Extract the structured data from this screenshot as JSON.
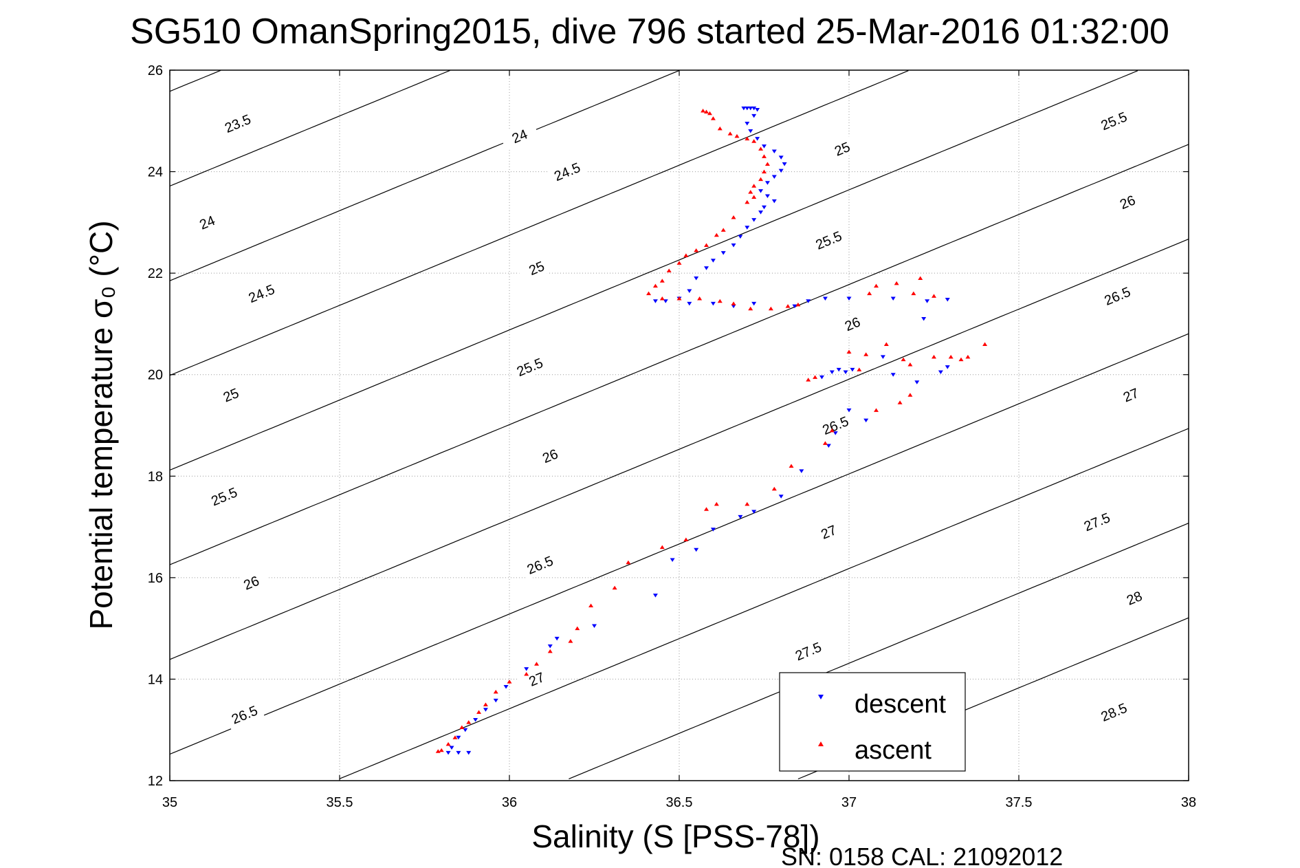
{
  "chart_data": {
    "type": "scatter",
    "title": "SG510 OmanSpring2015, dive 796 started 25-Mar-2016 01:32:00",
    "xlabel": "Salinity (S [PSS-78])",
    "ylabel": "Potential temperature σ₀ (°C)",
    "xlim": [
      35,
      38
    ],
    "ylim": [
      12,
      26
    ],
    "x_ticks": [
      35,
      35.5,
      36,
      36.5,
      37,
      37.5,
      38
    ],
    "x_tick_labels": [
      "35",
      "35.5",
      "36",
      "36.5",
      "37",
      "37.5",
      "38"
    ],
    "y_ticks": [
      12,
      14,
      16,
      18,
      20,
      22,
      24,
      26
    ],
    "y_tick_labels": [
      "12",
      "14",
      "16",
      "18",
      "20",
      "22",
      "24",
      "26"
    ],
    "grid": true,
    "legend_position": "bottom-right",
    "isopycnal_levels": [
      23.5,
      24,
      24.5,
      25,
      25.5,
      26,
      26.5,
      27,
      27.5,
      28,
      28.5
    ],
    "isopycnal_labels": [
      {
        "text": "23.5",
        "x": 35.2,
        "y": 24.95
      },
      {
        "text": "24",
        "x": 36.03,
        "y": 24.7
      },
      {
        "text": "24",
        "x": 35.11,
        "y": 23.0
      },
      {
        "text": "24.5",
        "x": 36.17,
        "y": 24.0
      },
      {
        "text": "24.5",
        "x": 35.27,
        "y": 21.6
      },
      {
        "text": "25",
        "x": 36.98,
        "y": 24.45
      },
      {
        "text": "25",
        "x": 36.08,
        "y": 22.1
      },
      {
        "text": "25",
        "x": 35.18,
        "y": 19.6
      },
      {
        "text": "25.5",
        "x": 37.78,
        "y": 25.0
      },
      {
        "text": "25.5",
        "x": 36.94,
        "y": 22.65
      },
      {
        "text": "25.5",
        "x": 36.06,
        "y": 20.15
      },
      {
        "text": "25.5",
        "x": 35.16,
        "y": 17.6
      },
      {
        "text": "26",
        "x": 37.82,
        "y": 23.4
      },
      {
        "text": "26",
        "x": 37.01,
        "y": 21.0
      },
      {
        "text": "26",
        "x": 36.12,
        "y": 18.4
      },
      {
        "text": "26",
        "x": 35.24,
        "y": 15.9
      },
      {
        "text": "26.5",
        "x": 37.79,
        "y": 21.55
      },
      {
        "text": "26.5",
        "x": 36.96,
        "y": 19.0
      },
      {
        "text": "26.5",
        "x": 36.09,
        "y": 16.25
      },
      {
        "text": "26.5",
        "x": 35.22,
        "y": 13.3
      },
      {
        "text": "27",
        "x": 37.83,
        "y": 19.6
      },
      {
        "text": "27",
        "x": 36.94,
        "y": 16.9
      },
      {
        "text": "27",
        "x": 36.08,
        "y": 14.0
      },
      {
        "text": "27.5",
        "x": 37.73,
        "y": 17.1
      },
      {
        "text": "27.5",
        "x": 36.88,
        "y": 14.55
      },
      {
        "text": "28",
        "x": 37.84,
        "y": 15.6
      },
      {
        "text": "28.5",
        "x": 37.78,
        "y": 13.35
      }
    ],
    "series": [
      {
        "name": "descent",
        "color": "#0000ff",
        "marker": "triangle-down",
        "points": [
          [
            36.69,
            25.25
          ],
          [
            36.7,
            25.25
          ],
          [
            36.71,
            25.25
          ],
          [
            36.72,
            25.25
          ],
          [
            36.73,
            25.22
          ],
          [
            36.72,
            25.1
          ],
          [
            36.7,
            24.95
          ],
          [
            36.71,
            24.8
          ],
          [
            36.73,
            24.65
          ],
          [
            36.75,
            24.5
          ],
          [
            36.78,
            24.4
          ],
          [
            36.8,
            24.28
          ],
          [
            36.81,
            24.15
          ],
          [
            36.8,
            24.02
          ],
          [
            36.78,
            23.9
          ],
          [
            36.76,
            23.78
          ],
          [
            36.74,
            23.62
          ],
          [
            36.76,
            23.52
          ],
          [
            36.78,
            23.42
          ],
          [
            36.75,
            23.3
          ],
          [
            36.74,
            23.2
          ],
          [
            36.72,
            23.05
          ],
          [
            36.7,
            22.9
          ],
          [
            36.68,
            22.72
          ],
          [
            36.66,
            22.55
          ],
          [
            36.63,
            22.4
          ],
          [
            36.6,
            22.25
          ],
          [
            36.58,
            22.1
          ],
          [
            36.55,
            21.9
          ],
          [
            36.53,
            21.65
          ],
          [
            36.5,
            21.5
          ],
          [
            36.46,
            21.45
          ],
          [
            36.43,
            21.45
          ],
          [
            36.53,
            21.4
          ],
          [
            36.6,
            21.4
          ],
          [
            36.66,
            21.35
          ],
          [
            36.72,
            21.4
          ],
          [
            36.84,
            21.35
          ],
          [
            36.88,
            21.45
          ],
          [
            36.93,
            21.5
          ],
          [
            37.0,
            21.5
          ],
          [
            37.13,
            21.5
          ],
          [
            37.23,
            21.45
          ],
          [
            37.29,
            21.48
          ],
          [
            37.22,
            21.1
          ],
          [
            37.1,
            20.35
          ],
          [
            37.13,
            20.0
          ],
          [
            37.2,
            19.85
          ],
          [
            37.27,
            20.05
          ],
          [
            37.29,
            20.15
          ],
          [
            36.97,
            20.1
          ],
          [
            36.99,
            20.05
          ],
          [
            37.01,
            20.1
          ],
          [
            36.95,
            20.05
          ],
          [
            36.92,
            19.95
          ],
          [
            37.0,
            19.3
          ],
          [
            37.05,
            19.1
          ],
          [
            36.96,
            18.85
          ],
          [
            36.94,
            18.6
          ],
          [
            36.86,
            18.1
          ],
          [
            36.8,
            17.6
          ],
          [
            36.72,
            17.3
          ],
          [
            36.68,
            17.2
          ],
          [
            36.6,
            16.95
          ],
          [
            36.55,
            16.55
          ],
          [
            36.48,
            16.35
          ],
          [
            36.43,
            15.65
          ],
          [
            36.25,
            15.05
          ],
          [
            36.14,
            14.8
          ],
          [
            36.12,
            14.65
          ],
          [
            36.05,
            14.2
          ],
          [
            35.99,
            13.85
          ],
          [
            35.96,
            13.58
          ],
          [
            35.93,
            13.4
          ],
          [
            35.9,
            13.2
          ],
          [
            35.87,
            13.0
          ],
          [
            35.85,
            12.85
          ],
          [
            35.83,
            12.65
          ],
          [
            35.82,
            12.55
          ],
          [
            35.85,
            12.55
          ],
          [
            35.88,
            12.55
          ]
        ]
      },
      {
        "name": "ascent",
        "color": "#ff0000",
        "marker": "triangle-up",
        "points": [
          [
            36.57,
            25.2
          ],
          [
            36.58,
            25.18
          ],
          [
            36.59,
            25.15
          ],
          [
            36.6,
            25.05
          ],
          [
            36.62,
            24.85
          ],
          [
            36.65,
            24.75
          ],
          [
            36.67,
            24.7
          ],
          [
            36.7,
            24.65
          ],
          [
            36.72,
            24.6
          ],
          [
            36.74,
            24.45
          ],
          [
            36.75,
            24.3
          ],
          [
            36.76,
            24.15
          ],
          [
            36.75,
            24.0
          ],
          [
            36.74,
            23.85
          ],
          [
            36.72,
            23.72
          ],
          [
            36.71,
            23.6
          ],
          [
            36.72,
            23.5
          ],
          [
            36.7,
            23.4
          ],
          [
            36.66,
            23.1
          ],
          [
            36.63,
            22.85
          ],
          [
            36.61,
            22.75
          ],
          [
            36.58,
            22.55
          ],
          [
            36.55,
            22.45
          ],
          [
            36.52,
            22.35
          ],
          [
            36.5,
            22.2
          ],
          [
            36.47,
            22.05
          ],
          [
            36.45,
            21.85
          ],
          [
            36.43,
            21.75
          ],
          [
            36.41,
            21.6
          ],
          [
            36.45,
            21.5
          ],
          [
            36.5,
            21.5
          ],
          [
            36.56,
            21.5
          ],
          [
            36.62,
            21.45
          ],
          [
            36.66,
            21.4
          ],
          [
            36.71,
            21.3
          ],
          [
            36.77,
            21.3
          ],
          [
            36.82,
            21.35
          ],
          [
            36.85,
            21.38
          ],
          [
            37.06,
            21.6
          ],
          [
            37.08,
            21.75
          ],
          [
            37.14,
            21.8
          ],
          [
            37.19,
            21.6
          ],
          [
            37.21,
            21.9
          ],
          [
            37.25,
            21.55
          ],
          [
            37.11,
            20.6
          ],
          [
            37.05,
            20.4
          ],
          [
            37.16,
            20.3
          ],
          [
            37.18,
            20.2
          ],
          [
            37.25,
            20.35
          ],
          [
            37.3,
            20.35
          ],
          [
            37.33,
            20.3
          ],
          [
            37.4,
            20.6
          ],
          [
            37.35,
            20.35
          ],
          [
            37.03,
            20.1
          ],
          [
            37.0,
            20.45
          ],
          [
            36.9,
            19.95
          ],
          [
            36.88,
            19.9
          ],
          [
            37.08,
            19.3
          ],
          [
            37.15,
            19.45
          ],
          [
            37.18,
            19.6
          ],
          [
            36.95,
            18.9
          ],
          [
            36.93,
            18.65
          ],
          [
            36.83,
            18.2
          ],
          [
            36.78,
            17.75
          ],
          [
            36.7,
            17.45
          ],
          [
            36.61,
            17.45
          ],
          [
            36.58,
            17.35
          ],
          [
            36.52,
            16.75
          ],
          [
            36.45,
            16.6
          ],
          [
            36.35,
            16.3
          ],
          [
            36.31,
            15.8
          ],
          [
            36.24,
            15.45
          ],
          [
            36.2,
            15.0
          ],
          [
            36.18,
            14.75
          ],
          [
            36.12,
            14.55
          ],
          [
            36.08,
            14.3
          ],
          [
            36.05,
            14.1
          ],
          [
            36.0,
            13.95
          ],
          [
            35.96,
            13.75
          ],
          [
            35.93,
            13.5
          ],
          [
            35.91,
            13.35
          ],
          [
            35.88,
            13.15
          ],
          [
            35.86,
            13.05
          ],
          [
            35.84,
            12.85
          ],
          [
            35.82,
            12.72
          ],
          [
            35.8,
            12.6
          ],
          [
            35.79,
            12.58
          ]
        ]
      }
    ]
  },
  "footer": {
    "serial_text": "SN: 0158  CAL: 21092012"
  }
}
